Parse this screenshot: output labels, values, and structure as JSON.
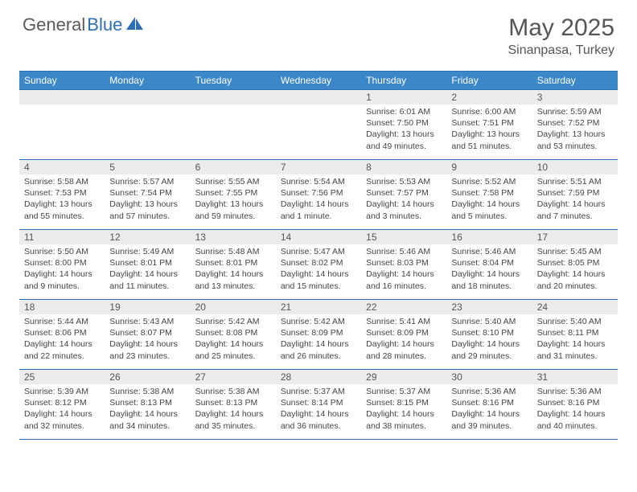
{
  "brand": {
    "text1": "General",
    "text2": "Blue"
  },
  "title": "May 2025",
  "location": "Sinanpasa, Turkey",
  "colors": {
    "header_bg": "#3b87c8",
    "header_border": "#2c6fb5",
    "daynum_bg": "#ececec",
    "text_gray": "#555555",
    "body_text": "#444444"
  },
  "dayNames": [
    "Sunday",
    "Monday",
    "Tuesday",
    "Wednesday",
    "Thursday",
    "Friday",
    "Saturday"
  ],
  "weeks": [
    [
      {
        "n": "",
        "sr": "",
        "ss": "",
        "dl": ""
      },
      {
        "n": "",
        "sr": "",
        "ss": "",
        "dl": ""
      },
      {
        "n": "",
        "sr": "",
        "ss": "",
        "dl": ""
      },
      {
        "n": "",
        "sr": "",
        "ss": "",
        "dl": ""
      },
      {
        "n": "1",
        "sr": "Sunrise: 6:01 AM",
        "ss": "Sunset: 7:50 PM",
        "dl": "Daylight: 13 hours and 49 minutes."
      },
      {
        "n": "2",
        "sr": "Sunrise: 6:00 AM",
        "ss": "Sunset: 7:51 PM",
        "dl": "Daylight: 13 hours and 51 minutes."
      },
      {
        "n": "3",
        "sr": "Sunrise: 5:59 AM",
        "ss": "Sunset: 7:52 PM",
        "dl": "Daylight: 13 hours and 53 minutes."
      }
    ],
    [
      {
        "n": "4",
        "sr": "Sunrise: 5:58 AM",
        "ss": "Sunset: 7:53 PM",
        "dl": "Daylight: 13 hours and 55 minutes."
      },
      {
        "n": "5",
        "sr": "Sunrise: 5:57 AM",
        "ss": "Sunset: 7:54 PM",
        "dl": "Daylight: 13 hours and 57 minutes."
      },
      {
        "n": "6",
        "sr": "Sunrise: 5:55 AM",
        "ss": "Sunset: 7:55 PM",
        "dl": "Daylight: 13 hours and 59 minutes."
      },
      {
        "n": "7",
        "sr": "Sunrise: 5:54 AM",
        "ss": "Sunset: 7:56 PM",
        "dl": "Daylight: 14 hours and 1 minute."
      },
      {
        "n": "8",
        "sr": "Sunrise: 5:53 AM",
        "ss": "Sunset: 7:57 PM",
        "dl": "Daylight: 14 hours and 3 minutes."
      },
      {
        "n": "9",
        "sr": "Sunrise: 5:52 AM",
        "ss": "Sunset: 7:58 PM",
        "dl": "Daylight: 14 hours and 5 minutes."
      },
      {
        "n": "10",
        "sr": "Sunrise: 5:51 AM",
        "ss": "Sunset: 7:59 PM",
        "dl": "Daylight: 14 hours and 7 minutes."
      }
    ],
    [
      {
        "n": "11",
        "sr": "Sunrise: 5:50 AM",
        "ss": "Sunset: 8:00 PM",
        "dl": "Daylight: 14 hours and 9 minutes."
      },
      {
        "n": "12",
        "sr": "Sunrise: 5:49 AM",
        "ss": "Sunset: 8:01 PM",
        "dl": "Daylight: 14 hours and 11 minutes."
      },
      {
        "n": "13",
        "sr": "Sunrise: 5:48 AM",
        "ss": "Sunset: 8:01 PM",
        "dl": "Daylight: 14 hours and 13 minutes."
      },
      {
        "n": "14",
        "sr": "Sunrise: 5:47 AM",
        "ss": "Sunset: 8:02 PM",
        "dl": "Daylight: 14 hours and 15 minutes."
      },
      {
        "n": "15",
        "sr": "Sunrise: 5:46 AM",
        "ss": "Sunset: 8:03 PM",
        "dl": "Daylight: 14 hours and 16 minutes."
      },
      {
        "n": "16",
        "sr": "Sunrise: 5:46 AM",
        "ss": "Sunset: 8:04 PM",
        "dl": "Daylight: 14 hours and 18 minutes."
      },
      {
        "n": "17",
        "sr": "Sunrise: 5:45 AM",
        "ss": "Sunset: 8:05 PM",
        "dl": "Daylight: 14 hours and 20 minutes."
      }
    ],
    [
      {
        "n": "18",
        "sr": "Sunrise: 5:44 AM",
        "ss": "Sunset: 8:06 PM",
        "dl": "Daylight: 14 hours and 22 minutes."
      },
      {
        "n": "19",
        "sr": "Sunrise: 5:43 AM",
        "ss": "Sunset: 8:07 PM",
        "dl": "Daylight: 14 hours and 23 minutes."
      },
      {
        "n": "20",
        "sr": "Sunrise: 5:42 AM",
        "ss": "Sunset: 8:08 PM",
        "dl": "Daylight: 14 hours and 25 minutes."
      },
      {
        "n": "21",
        "sr": "Sunrise: 5:42 AM",
        "ss": "Sunset: 8:09 PM",
        "dl": "Daylight: 14 hours and 26 minutes."
      },
      {
        "n": "22",
        "sr": "Sunrise: 5:41 AM",
        "ss": "Sunset: 8:09 PM",
        "dl": "Daylight: 14 hours and 28 minutes."
      },
      {
        "n": "23",
        "sr": "Sunrise: 5:40 AM",
        "ss": "Sunset: 8:10 PM",
        "dl": "Daylight: 14 hours and 29 minutes."
      },
      {
        "n": "24",
        "sr": "Sunrise: 5:40 AM",
        "ss": "Sunset: 8:11 PM",
        "dl": "Daylight: 14 hours and 31 minutes."
      }
    ],
    [
      {
        "n": "25",
        "sr": "Sunrise: 5:39 AM",
        "ss": "Sunset: 8:12 PM",
        "dl": "Daylight: 14 hours and 32 minutes."
      },
      {
        "n": "26",
        "sr": "Sunrise: 5:38 AM",
        "ss": "Sunset: 8:13 PM",
        "dl": "Daylight: 14 hours and 34 minutes."
      },
      {
        "n": "27",
        "sr": "Sunrise: 5:38 AM",
        "ss": "Sunset: 8:13 PM",
        "dl": "Daylight: 14 hours and 35 minutes."
      },
      {
        "n": "28",
        "sr": "Sunrise: 5:37 AM",
        "ss": "Sunset: 8:14 PM",
        "dl": "Daylight: 14 hours and 36 minutes."
      },
      {
        "n": "29",
        "sr": "Sunrise: 5:37 AM",
        "ss": "Sunset: 8:15 PM",
        "dl": "Daylight: 14 hours and 38 minutes."
      },
      {
        "n": "30",
        "sr": "Sunrise: 5:36 AM",
        "ss": "Sunset: 8:16 PM",
        "dl": "Daylight: 14 hours and 39 minutes."
      },
      {
        "n": "31",
        "sr": "Sunrise: 5:36 AM",
        "ss": "Sunset: 8:16 PM",
        "dl": "Daylight: 14 hours and 40 minutes."
      }
    ]
  ]
}
